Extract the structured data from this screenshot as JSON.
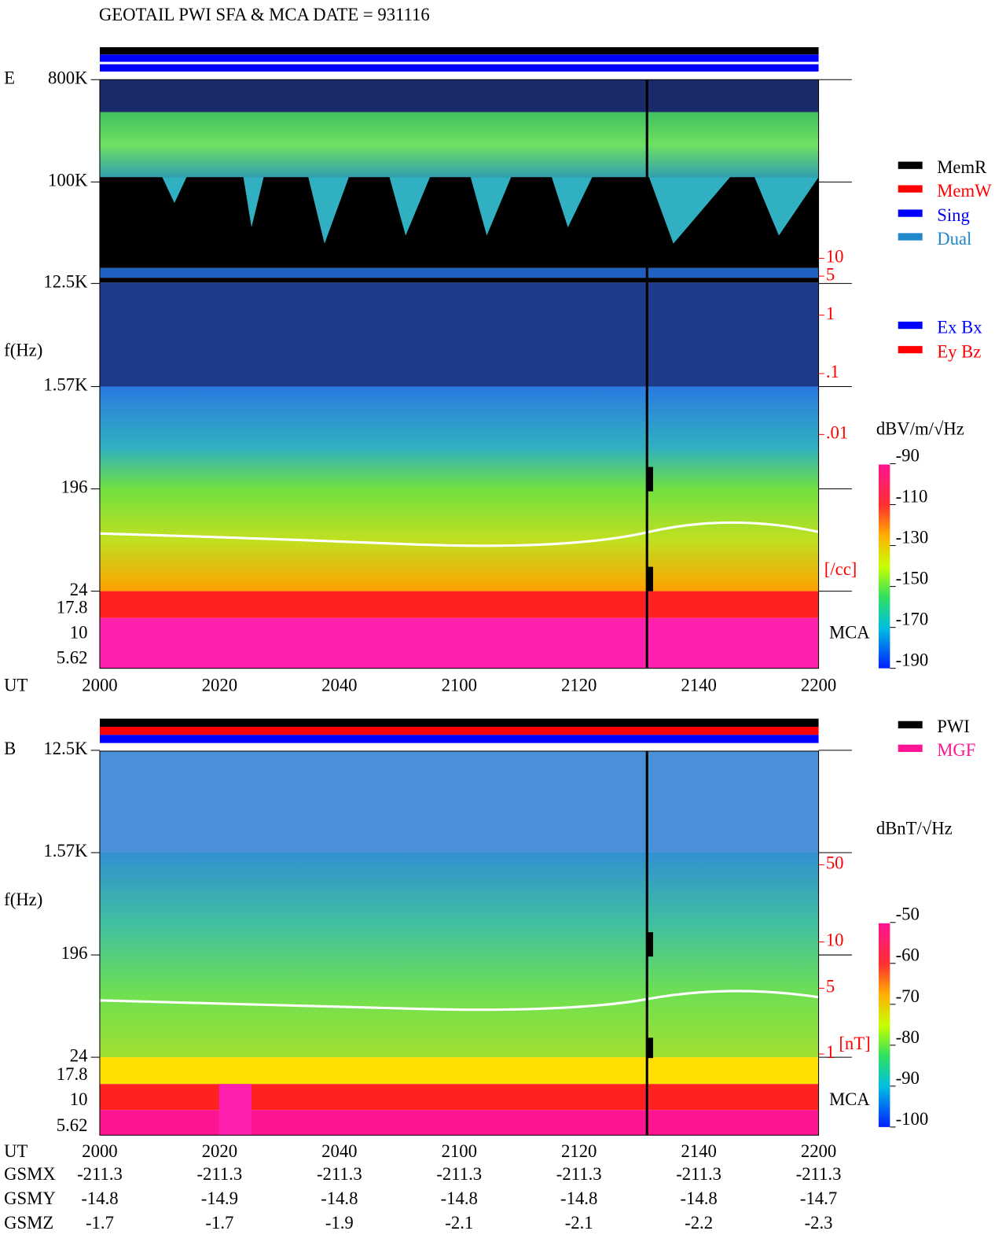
{
  "title": "GEOTAIL  PWI SFA & MCA   DATE = 931116",
  "panels": [
    {
      "label": "E",
      "y_axis_title": "f(Hz)",
      "x_axis_title": "UT",
      "y_labels": [
        "800K",
        "100K",
        "12.5K",
        "1.57K",
        "196",
        "24",
        "17.8",
        "10",
        "5.62"
      ],
      "x_ticks": [
        2000,
        2020,
        2040,
        2100,
        2120,
        2140,
        2200
      ],
      "density_labels": [
        "10",
        "5",
        "1",
        ".1",
        ".01"
      ],
      "density_unit": "[/cc]",
      "mca_label": "MCA",
      "legend": [
        {
          "name": "MemR",
          "color": "#000000"
        },
        {
          "name": "MemW",
          "color": "#ff0000"
        },
        {
          "name": "Sing",
          "color": "#0000ff"
        },
        {
          "name": "Dual",
          "color": "#2288cc"
        }
      ],
      "legend2": [
        {
          "name": "Ex Bx",
          "color": "#0000ff"
        },
        {
          "name": "Ey Bz",
          "color": "#ff0000"
        }
      ],
      "colorbar": {
        "unit": "dBV/m/√Hz",
        "ticks": [
          -90,
          -110,
          -130,
          -150,
          -170,
          -190
        ]
      }
    },
    {
      "label": "B",
      "y_axis_title": "f(Hz)",
      "x_axis_title": "UT",
      "y_labels": [
        "12.5K",
        "1.57K",
        "196",
        "24",
        "17.8",
        "10",
        "5.62"
      ],
      "x_ticks": [
        2000,
        2020,
        2040,
        2100,
        2120,
        2140,
        2200
      ],
      "density_labels": [
        "50",
        "10",
        "5",
        "1"
      ],
      "density_unit": "[nT]",
      "mca_label": "MCA",
      "legend": [
        {
          "name": "PWI",
          "color": "#000000"
        },
        {
          "name": "MGF",
          "color": "#ff1493"
        }
      ],
      "legend2": [],
      "colorbar": {
        "unit": "dBnT/√Hz",
        "ticks": [
          -50,
          -60,
          -70,
          -80,
          -90,
          -100
        ]
      }
    }
  ],
  "orbit": {
    "rows": [
      {
        "name": "GSMX",
        "values": [
          -211.3,
          -211.3,
          -211.3,
          -211.3,
          -211.3,
          -211.3,
          -211.3
        ]
      },
      {
        "name": "GSMY",
        "values": [
          -14.8,
          -14.9,
          -14.8,
          -14.8,
          -14.8,
          -14.8,
          -14.7
        ]
      },
      {
        "name": "GSMZ",
        "values": [
          -1.7,
          -1.7,
          -1.9,
          -2.1,
          -2.1,
          -2.2,
          -2.3
        ]
      }
    ]
  }
}
